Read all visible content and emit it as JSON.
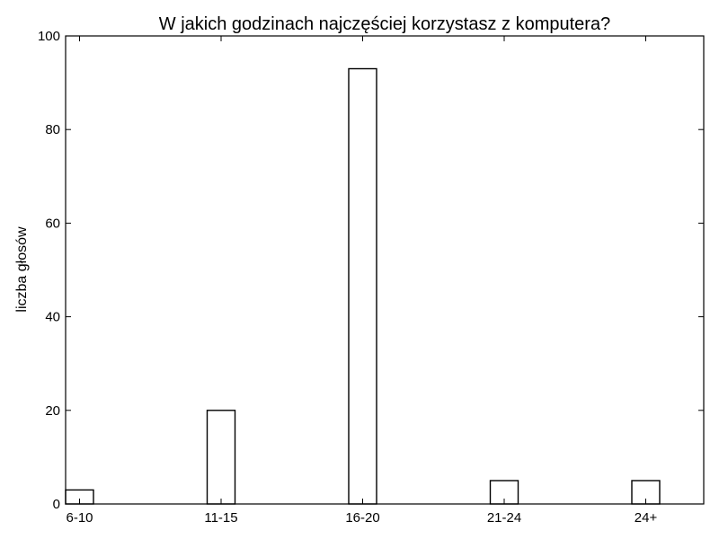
{
  "chart_data": {
    "type": "bar",
    "title": "W jakich godzinach najczęściej korzystasz z komputera?",
    "xlabel": "",
    "ylabel": "liczba głosów",
    "categories": [
      "6-10",
      "11-15",
      "16-20",
      "21-24",
      "24+"
    ],
    "values": [
      3,
      20,
      93,
      5,
      5
    ],
    "ylim": [
      0,
      100
    ],
    "yticks": [
      0,
      20,
      40,
      60,
      80,
      100
    ],
    "grid": false,
    "legend": "none",
    "bar_fill": "#ffffff",
    "bar_edge": "#000000"
  }
}
